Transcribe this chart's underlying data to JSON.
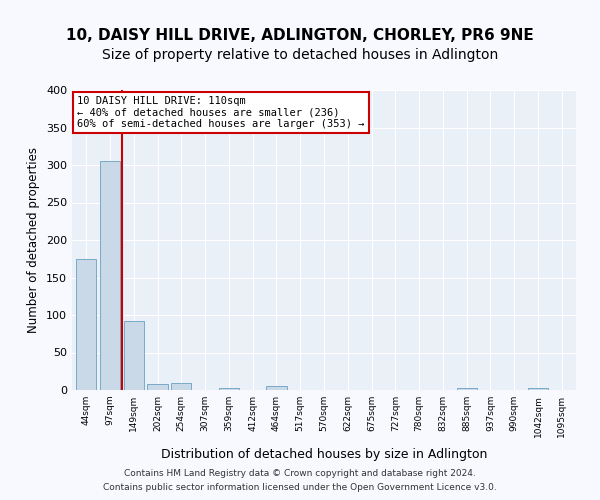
{
  "title1": "10, DAISY HILL DRIVE, ADLINGTON, CHORLEY, PR6 9NE",
  "title2": "Size of property relative to detached houses in Adlington",
  "xlabel": "Distribution of detached houses by size in Adlington",
  "ylabel": "Number of detached properties",
  "bin_labels": [
    "44sqm",
    "97sqm",
    "149sqm",
    "202sqm",
    "254sqm",
    "307sqm",
    "359sqm",
    "412sqm",
    "464sqm",
    "517sqm",
    "570sqm",
    "622sqm",
    "675sqm",
    "727sqm",
    "780sqm",
    "832sqm",
    "885sqm",
    "937sqm",
    "990sqm",
    "1042sqm",
    "1095sqm"
  ],
  "bar_values": [
    175,
    305,
    92,
    8,
    10,
    0,
    3,
    0,
    5,
    0,
    0,
    0,
    0,
    0,
    0,
    0,
    3,
    0,
    0,
    3,
    0
  ],
  "bar_color": "#c9d9e8",
  "bar_edge_color": "#7aaac8",
  "vline_color": "#cc0000",
  "annotation_line1": "10 DAISY HILL DRIVE: 110sqm",
  "annotation_line2": "← 40% of detached houses are smaller (236)",
  "annotation_line3": "60% of semi-detached houses are larger (353) →",
  "annotation_box_color": "#cc0000",
  "footer1": "Contains HM Land Registry data © Crown copyright and database right 2024.",
  "footer2": "Contains public sector information licensed under the Open Government Licence v3.0.",
  "ylim": [
    0,
    400
  ],
  "yticks": [
    0,
    50,
    100,
    150,
    200,
    250,
    300,
    350,
    400
  ],
  "plot_bg_color": "#eaf0f8",
  "grid_color": "#ffffff",
  "title1_fontsize": 11,
  "title2_fontsize": 10
}
